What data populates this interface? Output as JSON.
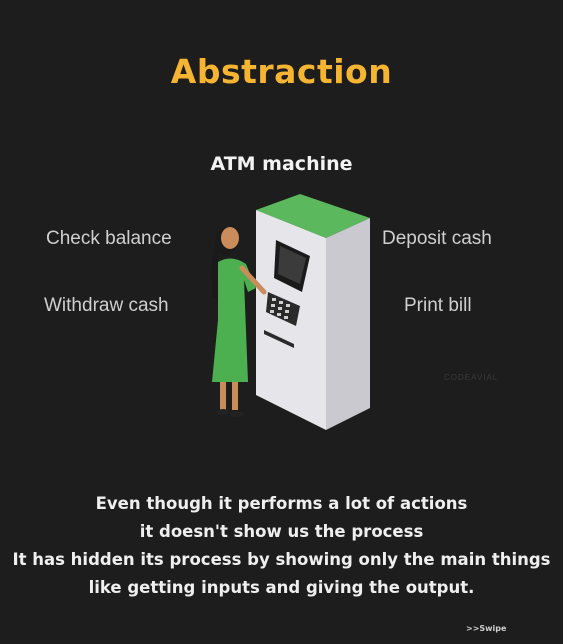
{
  "title": "Abstraction",
  "subtitle": "ATM machine",
  "actions": {
    "check_balance": "Check balance",
    "withdraw_cash": "Withdraw cash",
    "deposit_cash": "Deposit cash",
    "print_bill": "Print bill"
  },
  "watermark": "CODEAVIAL",
  "description": [
    "Even though it performs a lot of actions",
    "it doesn't show us the process",
    "It has hidden its process by showing only the main things",
    "like getting inputs and giving the output."
  ],
  "swipe": ">>Swipe",
  "colors": {
    "background": "#1d1d1d",
    "title": "#f5b431",
    "atm_green": "#5cb85c",
    "dress_green": "#4caf50"
  }
}
